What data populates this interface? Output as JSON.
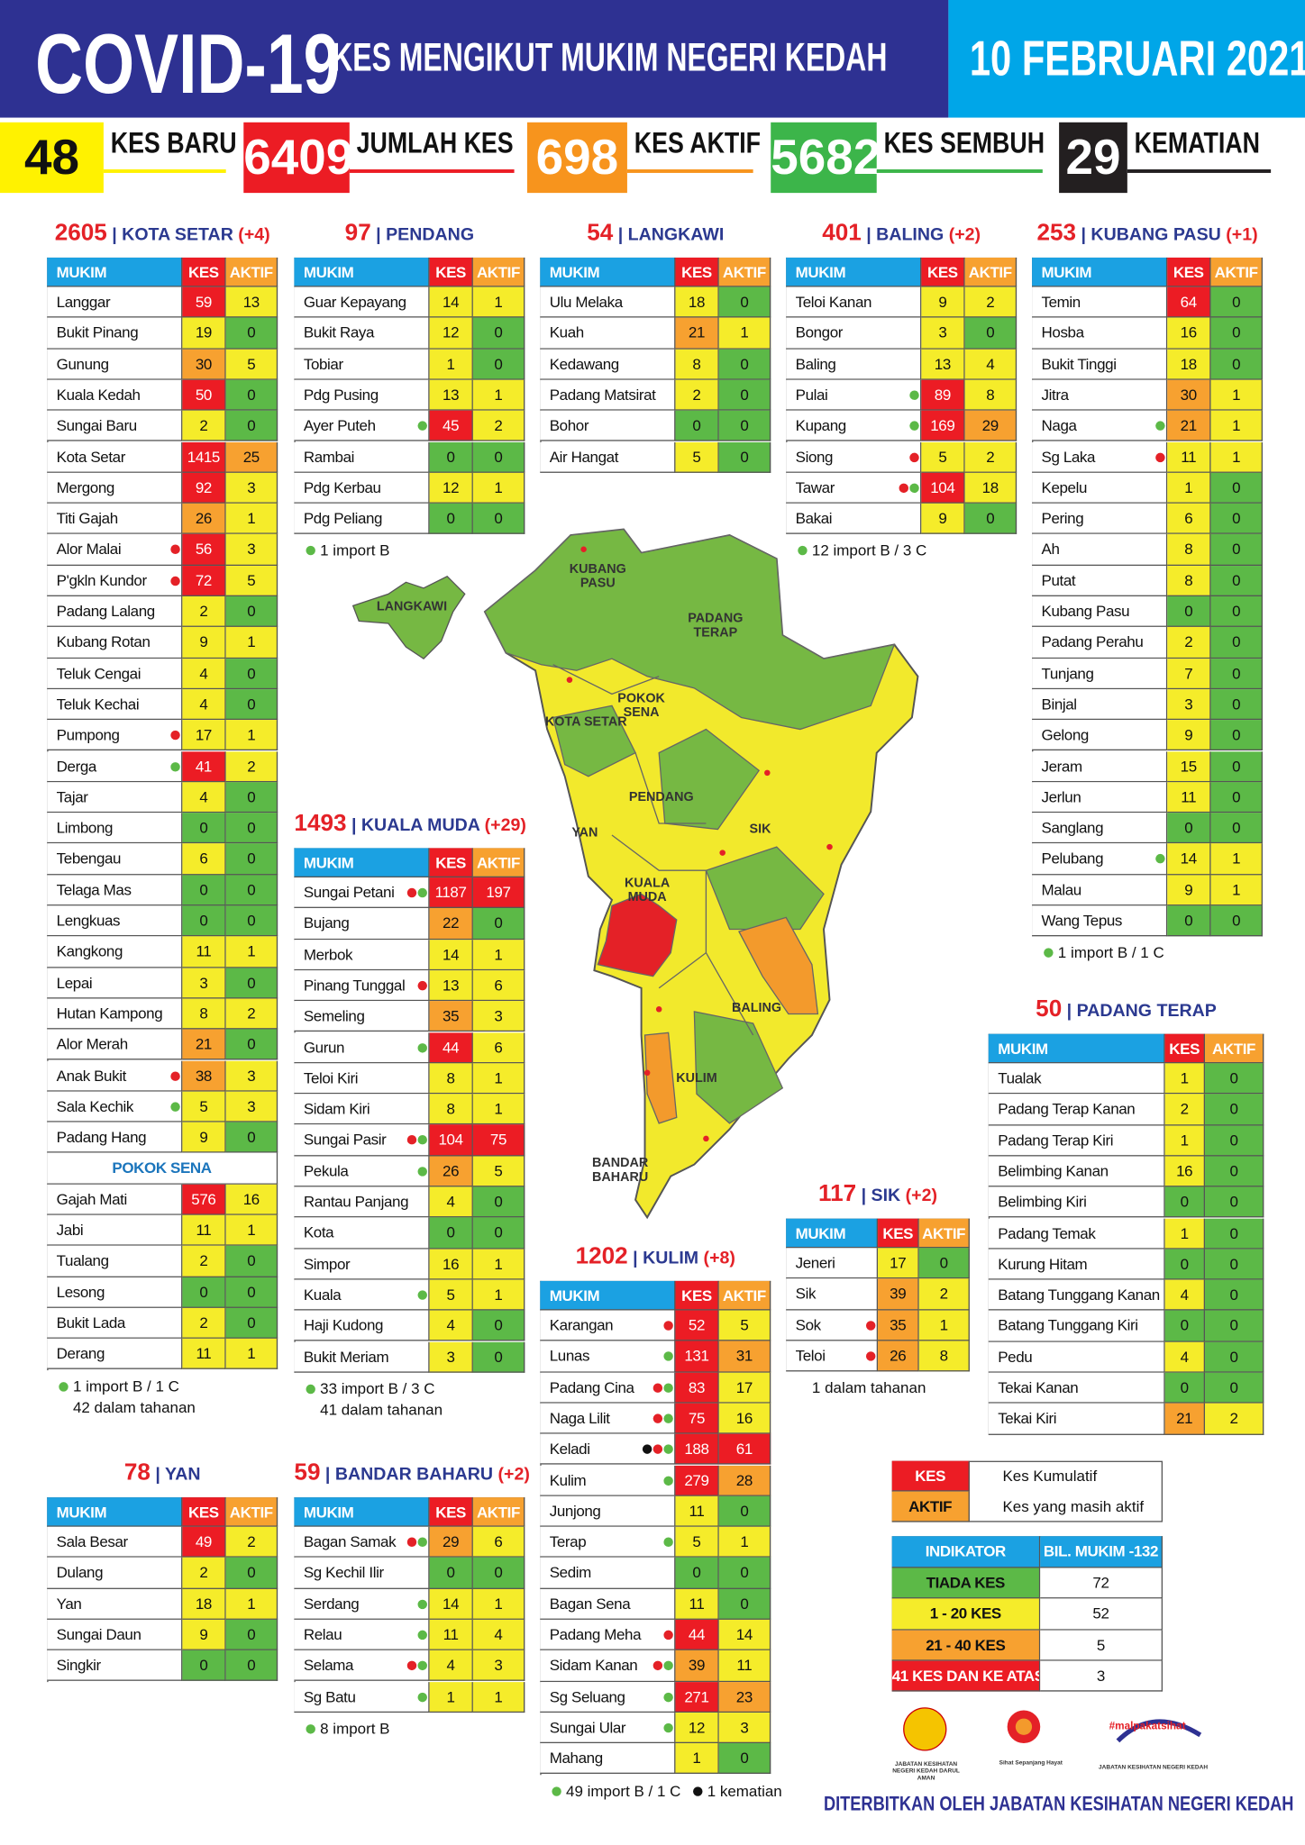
{
  "header": {
    "title": "COVID-19",
    "subtitle": "KES MENGIKUT MUKIM NEGERI KEDAH",
    "date": "10 FEBRUARI 2021"
  },
  "summary": [
    {
      "value": 48,
      "label": "KES BARU"
    },
    {
      "value": 6409,
      "label": "JUMLAH KES"
    },
    {
      "value": 698,
      "label": "KES AKTIF"
    },
    {
      "value": 5682,
      "label": "KES SEMBUH"
    },
    {
      "value": 29,
      "label": "KEMATIAN"
    }
  ],
  "tables": [
    {
      "total": 2605,
      "name": "KOTA SETAR",
      "change": "(+4)",
      "columns": [
        "MUKIM",
        "KES",
        "AKTIF"
      ],
      "rows": [
        [
          "Langgar",
          59,
          13
        ],
        [
          "Bukit Pinang",
          19,
          0
        ],
        [
          "Gunung",
          30,
          5
        ],
        [
          "Kuala Kedah",
          50,
          0
        ],
        [
          "Sungai Baru",
          2,
          0
        ],
        [
          "Kota Setar",
          1415,
          25
        ],
        [
          "Mergong",
          92,
          3
        ],
        [
          "Titi Gajah",
          26,
          1
        ],
        [
          "Alor Malai",
          56,
          3
        ],
        [
          "P'gkln Kundor",
          72,
          5
        ],
        [
          "Padang Lalang",
          2,
          0
        ],
        [
          "Kubang Rotan",
          9,
          1
        ],
        [
          "Teluk Cengai",
          4,
          0
        ],
        [
          "Teluk Kechai",
          4,
          0
        ],
        [
          "Pumpong",
          17,
          1
        ],
        [
          "Derga",
          41,
          2
        ],
        [
          "Tajar",
          4,
          0
        ],
        [
          "Limbong",
          0,
          0
        ],
        [
          "Tebengau",
          6,
          0
        ],
        [
          "Telaga Mas",
          0,
          0
        ],
        [
          "Lengkuas",
          0,
          0
        ],
        [
          "Kangkong",
          11,
          1
        ],
        [
          "Lepai",
          3,
          0
        ],
        [
          "Hutan Kampong",
          8,
          2
        ],
        [
          "Alor Merah",
          21,
          0
        ],
        [
          "Anak Bukit",
          38,
          3
        ],
        [
          "Sala Kechik",
          5,
          3
        ],
        [
          "Padang Hang",
          9,
          0
        ]
      ],
      "sub": {
        "name": "POKOK SENA",
        "rows": [
          [
            "Gajah Mati",
            576,
            16
          ],
          [
            "Jabi",
            11,
            1
          ],
          [
            "Tualang",
            2,
            0
          ],
          [
            "Lesong",
            0,
            0
          ],
          [
            "Bukit Lada",
            2,
            0
          ],
          [
            "Derang",
            11,
            1
          ]
        ]
      },
      "notes": [
        "1 import B / 1 C",
        "42 dalam tahanan"
      ]
    },
    {
      "total": 97,
      "name": "PENDANG",
      "columns": [
        "MUKIM",
        "KES",
        "AKTIF"
      ],
      "rows": [
        [
          "Guar Kepayang",
          14,
          1
        ],
        [
          "Bukit Raya",
          12,
          0
        ],
        [
          "Tobiar",
          1,
          0
        ],
        [
          "Pdg Pusing",
          13,
          1
        ],
        [
          "Ayer Puteh",
          45,
          2
        ],
        [
          "Rambai",
          0,
          0
        ],
        [
          "Pdg Kerbau",
          12,
          1
        ],
        [
          "Pdg Peliang",
          0,
          0
        ]
      ],
      "notes": [
        "1 import B"
      ]
    },
    {
      "total": 54,
      "name": "LANGKAWI",
      "columns": [
        "MUKIM",
        "KES",
        "AKTIF"
      ],
      "rows": [
        [
          "Ulu Melaka",
          18,
          0
        ],
        [
          "Kuah",
          21,
          1
        ],
        [
          "Kedawang",
          8,
          0
        ],
        [
          "Padang Matsirat",
          2,
          0
        ],
        [
          "Bohor",
          0,
          0
        ],
        [
          "Air Hangat",
          5,
          0
        ]
      ]
    },
    {
      "total": 401,
      "name": "BALING",
      "change": "(+2)",
      "columns": [
        "MUKIM",
        "KES",
        "AKTIF"
      ],
      "rows": [
        [
          "Teloi Kanan",
          9,
          2
        ],
        [
          "Bongor",
          3,
          0
        ],
        [
          "Baling",
          13,
          4
        ],
        [
          "Pulai",
          89,
          8
        ],
        [
          "Kupang",
          169,
          29
        ],
        [
          "Siong",
          5,
          2
        ],
        [
          "Tawar",
          104,
          18
        ],
        [
          "Bakai",
          9,
          0
        ]
      ],
      "notes": [
        "12 import B / 3 C"
      ]
    },
    {
      "total": 253,
      "name": "KUBANG PASU",
      "change": "(+1)",
      "columns": [
        "MUKIM",
        "KES",
        "AKTIF"
      ],
      "rows": [
        [
          "Temin",
          64,
          0
        ],
        [
          "Hosba",
          16,
          0
        ],
        [
          "Bukit Tinggi",
          18,
          0
        ],
        [
          "Jitra",
          30,
          1
        ],
        [
          "Naga",
          21,
          1
        ],
        [
          "Sg Laka",
          11,
          1
        ],
        [
          "Kepelu",
          1,
          0
        ],
        [
          "Pering",
          6,
          0
        ],
        [
          "Ah",
          8,
          0
        ],
        [
          "Putat",
          8,
          0
        ],
        [
          "Kubang Pasu",
          0,
          0
        ],
        [
          "Padang Perahu",
          2,
          0
        ],
        [
          "Tunjang",
          7,
          0
        ],
        [
          "Binjal",
          3,
          0
        ],
        [
          "Gelong",
          9,
          0
        ],
        [
          "Jeram",
          15,
          0
        ],
        [
          "Jerlun",
          11,
          0
        ],
        [
          "Sanglang",
          0,
          0
        ],
        [
          "Pelubang",
          14,
          1
        ],
        [
          "Malau",
          9,
          1
        ],
        [
          "Wang Tepus",
          0,
          0
        ]
      ],
      "notes": [
        "1 import B / 1 C"
      ]
    },
    {
      "total": 1493,
      "name": "KUALA MUDA",
      "change": "(+29)",
      "columns": [
        "MUKIM",
        "KES",
        "AKTIF"
      ],
      "rows": [
        [
          "Sungai Petani",
          1187,
          197
        ],
        [
          "Bujang",
          22,
          0
        ],
        [
          "Merbok",
          14,
          1
        ],
        [
          "Pinang Tunggal",
          13,
          6
        ],
        [
          "Semeling",
          35,
          3
        ],
        [
          "Gurun",
          44,
          6
        ],
        [
          "Teloi Kiri",
          8,
          1
        ],
        [
          "Sidam Kiri",
          8,
          1
        ],
        [
          "Sungai Pasir",
          104,
          75
        ],
        [
          "Pekula",
          26,
          5
        ],
        [
          "Rantau Panjang",
          4,
          0
        ],
        [
          "Kota",
          0,
          0
        ],
        [
          "Simpor",
          16,
          1
        ],
        [
          "Kuala",
          5,
          1
        ],
        [
          "Haji Kudong",
          4,
          0
        ],
        [
          "Bukit Meriam",
          3,
          0
        ]
      ],
      "notes": [
        "33 import B / 3 C",
        "41 dalam tahanan"
      ]
    },
    {
      "total": 50,
      "name": "PADANG TERAP",
      "columns": [
        "MUKIM",
        "KES",
        "AKTIF"
      ],
      "rows": [
        [
          "Tualak",
          1,
          0
        ],
        [
          "Padang Terap Kanan",
          2,
          0
        ],
        [
          "Padang Terap Kiri",
          1,
          0
        ],
        [
          "Belimbing Kanan",
          16,
          0
        ],
        [
          "Belimbing Kiri",
          0,
          0
        ],
        [
          "Padang Temak",
          1,
          0
        ],
        [
          "Kurung Hitam",
          0,
          0
        ],
        [
          "Batang Tunggang Kanan",
          4,
          0
        ],
        [
          "Batang Tunggang Kiri",
          0,
          0
        ],
        [
          "Pedu",
          4,
          0
        ],
        [
          "Tekai Kanan",
          0,
          0
        ],
        [
          "Tekai Kiri",
          21,
          2
        ]
      ]
    },
    {
      "total": 117,
      "name": "SIK",
      "change": "(+2)",
      "columns": [
        "MUKIM",
        "KES",
        "AKTIF"
      ],
      "rows": [
        [
          "Jeneri",
          17,
          0
        ],
        [
          "Sik",
          39,
          2
        ],
        [
          "Sok",
          35,
          1
        ],
        [
          "Teloi",
          26,
          8
        ]
      ],
      "notes": [
        "1 dalam tahanan"
      ]
    },
    {
      "total": 1202,
      "name": "KULIM",
      "change": "(+8)",
      "columns": [
        "MUKIM",
        "KES",
        "AKTIF"
      ],
      "rows": [
        [
          "Karangan",
          52,
          5
        ],
        [
          "Lunas",
          131,
          31
        ],
        [
          "Padang Cina",
          83,
          17
        ],
        [
          "Naga Lilit",
          75,
          16
        ],
        [
          "Keladi",
          188,
          61
        ],
        [
          "Kulim",
          279,
          28
        ],
        [
          "Junjong",
          11,
          0
        ],
        [
          "Terap",
          5,
          1
        ],
        [
          "Sedim",
          0,
          0
        ],
        [
          "Bagan Sena",
          11,
          0
        ],
        [
          "Padang Meha",
          44,
          14
        ],
        [
          "Sidam Kanan",
          39,
          11
        ],
        [
          "Sg Seluang",
          271,
          23
        ],
        [
          "Sungai Ular",
          12,
          3
        ],
        [
          "Mahang",
          1,
          0
        ]
      ],
      "notes": [
        "49 import B / 1 C",
        "1 kematian"
      ]
    },
    {
      "total": 78,
      "name": "YAN",
      "columns": [
        "MUKIM",
        "KES",
        "AKTIF"
      ],
      "rows": [
        [
          "Sala Besar",
          49,
          2
        ],
        [
          "Dulang",
          2,
          0
        ],
        [
          "Yan",
          18,
          1
        ],
        [
          "Sungai Daun",
          9,
          0
        ],
        [
          "Singkir",
          0,
          0
        ]
      ]
    },
    {
      "total": 59,
      "name": "BANDAR BAHARU",
      "change": "(+2)",
      "columns": [
        "MUKIM",
        "KES",
        "AKTIF"
      ],
      "rows": [
        [
          "Bagan Samak",
          29,
          6
        ],
        [
          "Sg Kechil Ilir",
          0,
          0
        ],
        [
          "Serdang",
          14,
          1
        ],
        [
          "Relau",
          11,
          4
        ],
        [
          "Selama",
          4,
          3
        ],
        [
          "Sg Batu",
          1,
          1
        ]
      ],
      "notes": [
        "8 import B"
      ]
    }
  ],
  "map": {
    "labels": [
      "KUBANG PASU",
      "LANGKAWI",
      "PADANG TERAP",
      "KOTA SETAR",
      "POKOK SENA",
      "PENDANG",
      "YAN",
      "SIK",
      "KUALA MUDA",
      "BALING",
      "KULIM",
      "BANDAR BAHARU"
    ]
  },
  "legend": [
    {
      "key": "KES",
      "text": "Kes Kumulatif"
    },
    {
      "key": "AKTIF",
      "text": "Kes yang masih aktif"
    }
  ],
  "indicator": {
    "columns": [
      "INDIKATOR",
      "BIL. MUKIM -132"
    ],
    "rows": [
      [
        "TIADA KES",
        72
      ],
      [
        "1 - 20 KES",
        52
      ],
      [
        "21 - 40 KES",
        5
      ],
      [
        "41 KES DAN KE ATAS",
        3
      ]
    ]
  },
  "logos": [
    "JABATAN KESIHATAN NEGERI KEDAH DARUL AMAN",
    "Sihat Sepanjang Hayat",
    "#malpakatsihat",
    "JABATAN KESIHATAN NEGERI KEDAH"
  ],
  "footer": "DITERBITKAN OLEH JABATAN KESIHATAN NEGERI KEDAH"
}
